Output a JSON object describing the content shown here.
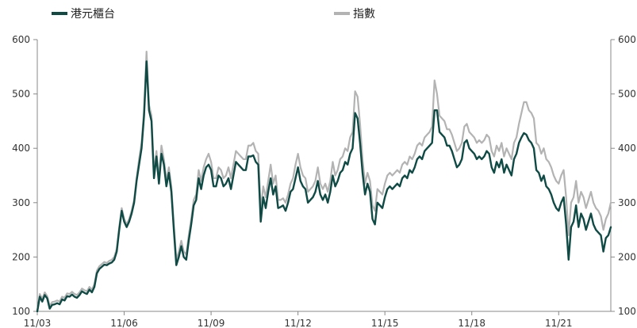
{
  "legend": [
    {
      "label": "港元櫃台",
      "color": "#0f4a45"
    },
    {
      "label": "指數",
      "color": "#b3b3b3"
    }
  ],
  "chart_data": {
    "type": "line",
    "title": "",
    "xlabel": "",
    "ylabel": "",
    "ylim": [
      100,
      600
    ],
    "y_ticks": [
      100,
      200,
      300,
      400,
      500,
      600
    ],
    "y2_ticks": [
      100,
      200,
      300,
      400,
      500,
      600
    ],
    "x_tick_labels": [
      "11/03",
      "11/06",
      "11/09",
      "11/12",
      "11/15",
      "11/18",
      "11/21"
    ],
    "grid": false,
    "legend_position": "top",
    "series": [
      {
        "name": "港元櫃台",
        "color": "#0f4a45",
        "axis": "left",
        "values": [
          100,
          127,
          118,
          130,
          124,
          105,
          112,
          113,
          115,
          113,
          122,
          120,
          128,
          127,
          131,
          127,
          125,
          130,
          137,
          134,
          132,
          140,
          135,
          145,
          170,
          178,
          182,
          186,
          185,
          188,
          190,
          195,
          210,
          250,
          285,
          265,
          255,
          265,
          280,
          300,
          340,
          370,
          400,
          460,
          560,
          470,
          450,
          345,
          385,
          335,
          390,
          370,
          330,
          355,
          320,
          250,
          185,
          200,
          220,
          200,
          195,
          230,
          260,
          295,
          305,
          345,
          325,
          350,
          365,
          370,
          360,
          330,
          330,
          350,
          345,
          330,
          335,
          345,
          325,
          350,
          375,
          370,
          365,
          360,
          360,
          385,
          385,
          387,
          375,
          370,
          265,
          310,
          290,
          320,
          345,
          315,
          330,
          290,
          292,
          295,
          285,
          300,
          320,
          325,
          345,
          365,
          340,
          330,
          325,
          300,
          305,
          310,
          320,
          340,
          315,
          305,
          315,
          300,
          320,
          350,
          330,
          340,
          355,
          360,
          375,
          370,
          390,
          400,
          465,
          455,
          410,
          355,
          315,
          335,
          320,
          270,
          260,
          300,
          295,
          290,
          310,
          325,
          330,
          325,
          330,
          335,
          330,
          345,
          350,
          345,
          360,
          355,
          365,
          380,
          385,
          380,
          395,
          400,
          405,
          410,
          470,
          470,
          430,
          425,
          420,
          405,
          405,
          395,
          380,
          365,
          370,
          380,
          410,
          415,
          400,
          395,
          390,
          380,
          385,
          380,
          385,
          395,
          390,
          365,
          355,
          375,
          365,
          380,
          355,
          370,
          360,
          350,
          380,
          390,
          410,
          420,
          428,
          425,
          415,
          410,
          400,
          360,
          355,
          340,
          350,
          330,
          325,
          315,
          300,
          290,
          285,
          300,
          310,
          260,
          195,
          255,
          265,
          295,
          255,
          280,
          270,
          250,
          265,
          280,
          260,
          250,
          245,
          240,
          210,
          235,
          240,
          255
        ]
      },
      {
        "name": "指數",
        "color": "#b3b3b3",
        "axis": "right",
        "values": [
          100,
          132,
          123,
          135,
          128,
          110,
          117,
          118,
          120,
          118,
          127,
          125,
          133,
          132,
          136,
          132,
          130,
          135,
          142,
          139,
          137,
          145,
          140,
          150,
          175,
          183,
          187,
          191,
          189,
          193,
          195,
          200,
          215,
          255,
          290,
          270,
          260,
          270,
          285,
          305,
          345,
          380,
          410,
          470,
          578,
          480,
          460,
          355,
          395,
          345,
          405,
          380,
          340,
          365,
          330,
          260,
          195,
          210,
          230,
          210,
          205,
          240,
          270,
          305,
          315,
          360,
          340,
          365,
          380,
          390,
          375,
          345,
          345,
          365,
          360,
          345,
          350,
          365,
          345,
          370,
          395,
          390,
          385,
          380,
          380,
          405,
          405,
          410,
          395,
          390,
          285,
          330,
          310,
          340,
          370,
          335,
          350,
          305,
          305,
          308,
          300,
          315,
          335,
          345,
          370,
          390,
          365,
          350,
          345,
          320,
          325,
          330,
          340,
          365,
          335,
          325,
          335,
          320,
          340,
          375,
          350,
          360,
          380,
          385,
          400,
          395,
          420,
          430,
          505,
          495,
          445,
          380,
          335,
          355,
          340,
          295,
          285,
          325,
          320,
          315,
          335,
          350,
          355,
          350,
          355,
          360,
          355,
          370,
          375,
          370,
          385,
          380,
          390,
          405,
          410,
          405,
          420,
          425,
          430,
          440,
          525,
          500,
          460,
          455,
          450,
          435,
          435,
          425,
          410,
          395,
          400,
          410,
          440,
          445,
          430,
          425,
          420,
          410,
          415,
          410,
          415,
          425,
          420,
          395,
          385,
          405,
          395,
          410,
          385,
          400,
          390,
          380,
          410,
          420,
          445,
          465,
          485,
          485,
          470,
          465,
          455,
          410,
          405,
          390,
          400,
          380,
          375,
          365,
          350,
          340,
          335,
          350,
          360,
          310,
          240,
          300,
          310,
          340,
          300,
          320,
          310,
          290,
          305,
          320,
          300,
          290,
          285,
          275,
          250,
          270,
          280,
          300
        ]
      }
    ]
  }
}
